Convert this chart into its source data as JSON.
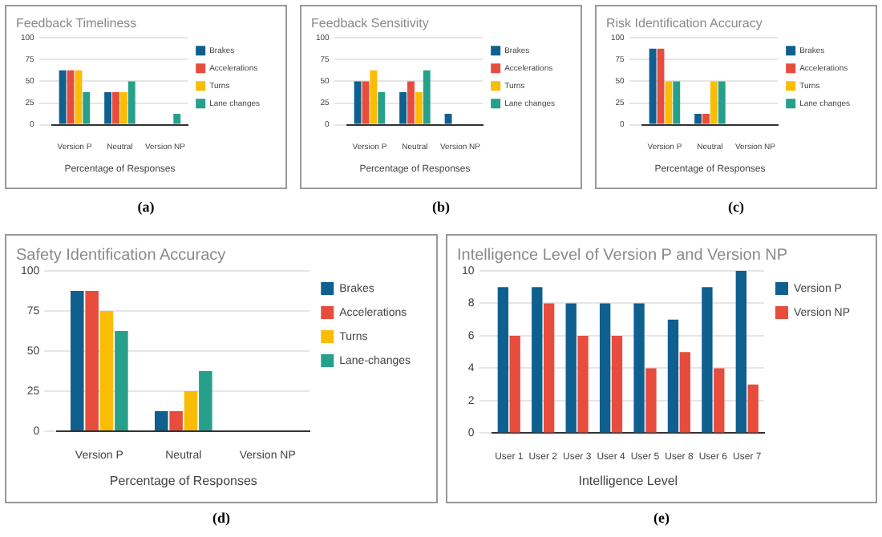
{
  "chart_data": [
    {
      "type": "bar",
      "title": "Feedback Timeliness",
      "xlabel": "Percentage of Responses",
      "categories": [
        "Version P",
        "Neutral",
        "Version NP"
      ],
      "series": [
        {
          "name": "Brakes",
          "color": "#0f5f8f",
          "values": [
            62.5,
            37.5,
            0
          ]
        },
        {
          "name": "Accelerations",
          "color": "#e84c3d",
          "values": [
            62.5,
            37.5,
            0
          ]
        },
        {
          "name": "Turns",
          "color": "#fbbc04",
          "values": [
            62.5,
            37.5,
            0
          ]
        },
        {
          "name": "Lane changes",
          "color": "#26a08a",
          "values": [
            37.5,
            50,
            12.5
          ]
        }
      ],
      "ylim": [
        0,
        100
      ],
      "yticks": [
        0,
        25,
        50,
        75,
        100
      ],
      "grid": "y",
      "legend": "top right",
      "annotations": [
        "(a)"
      ]
    },
    {
      "type": "bar",
      "title": "Feedback Sensitivity",
      "xlabel": "Percentage of Responses",
      "categories": [
        "Version P",
        "Neutral",
        "Version NP"
      ],
      "series": [
        {
          "name": "Brakes",
          "color": "#0f5f8f",
          "values": [
            50,
            37.5,
            12.5
          ]
        },
        {
          "name": "Accelerations",
          "color": "#e84c3d",
          "values": [
            50,
            50,
            0
          ]
        },
        {
          "name": "Turns",
          "color": "#fbbc04",
          "values": [
            62.5,
            37.5,
            0
          ]
        },
        {
          "name": "Lane changes",
          "color": "#26a08a",
          "values": [
            37.5,
            62.5,
            0
          ]
        }
      ],
      "ylim": [
        0,
        100
      ],
      "yticks": [
        0,
        25,
        50,
        75,
        100
      ],
      "grid": "y",
      "legend": "top right",
      "annotations": [
        "(b)"
      ]
    },
    {
      "type": "bar",
      "title": "Risk Identification Accuracy",
      "xlabel": "Percentage of Responses",
      "categories": [
        "Version P",
        "Neutral",
        "Version NP"
      ],
      "series": [
        {
          "name": "Brakes",
          "color": "#0f5f8f",
          "values": [
            87.5,
            12.5,
            0
          ]
        },
        {
          "name": "Accelerations",
          "color": "#e84c3d",
          "values": [
            87.5,
            12.5,
            0
          ]
        },
        {
          "name": "Turns",
          "color": "#fbbc04",
          "values": [
            50,
            50,
            0
          ]
        },
        {
          "name": "Lane changes",
          "color": "#26a08a",
          "values": [
            50,
            50,
            0
          ]
        }
      ],
      "ylim": [
        0,
        100
      ],
      "yticks": [
        0,
        25,
        50,
        75,
        100
      ],
      "grid": "y",
      "legend": "top right",
      "annotations": [
        "(c)"
      ]
    },
    {
      "type": "bar",
      "title": "Safety Identification Accuracy",
      "xlabel": "Percentage of Responses",
      "categories": [
        "Version P",
        "Neutral",
        "Version NP"
      ],
      "series": [
        {
          "name": "Brakes",
          "color": "#0f5f8f",
          "values": [
            87.5,
            12.5,
            0
          ]
        },
        {
          "name": "Accelerations",
          "color": "#e84c3d",
          "values": [
            87.5,
            12.5,
            0
          ]
        },
        {
          "name": "Turns",
          "color": "#fbbc04",
          "values": [
            75,
            25,
            0
          ]
        },
        {
          "name": "Lane-changes",
          "color": "#26a08a",
          "values": [
            62.5,
            37.5,
            0
          ]
        }
      ],
      "ylim": [
        0,
        100
      ],
      "yticks": [
        0,
        25,
        50,
        75,
        100
      ],
      "grid": "y",
      "legend": "top right",
      "annotations": [
        "(d)"
      ]
    },
    {
      "type": "bar",
      "title": "Intelligence Level of Version P and Version NP",
      "xlabel": "Intelligence Level",
      "categories": [
        "User 1",
        "User 2",
        "User 3",
        "User 4",
        "User 5",
        "User 8",
        "User 6",
        "User 7"
      ],
      "series": [
        {
          "name": "Version P",
          "color": "#0f5f8f",
          "values": [
            9,
            9,
            8,
            8,
            8,
            7,
            9,
            10
          ]
        },
        {
          "name": "Version NP",
          "color": "#e84c3d",
          "values": [
            6,
            8,
            6,
            6,
            4,
            5,
            4,
            3
          ]
        }
      ],
      "ylim": [
        0,
        10
      ],
      "yticks": [
        0,
        2,
        4,
        6,
        8,
        10
      ],
      "grid": "y",
      "legend": "top right",
      "annotations": [
        "(e)"
      ]
    }
  ]
}
